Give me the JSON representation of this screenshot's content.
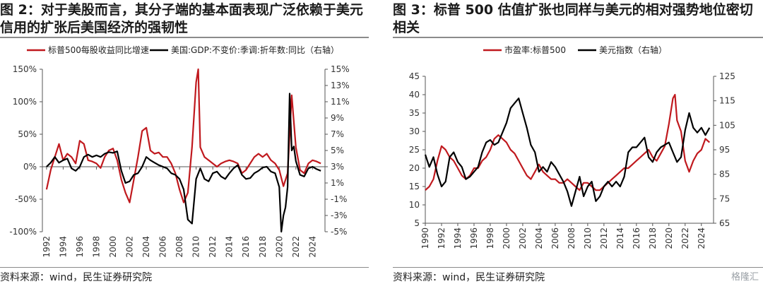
{
  "left": {
    "title": "图 2：对于美股而言，其分子端的基本面表现广泛依赖于美元信用的扩张后美国经济的强韧性",
    "source": "资料来源：wind，民生证券研究院"
  },
  "right": {
    "title": "图 3：标普 500 估值扩张也同样与美元的相对强势地位密切相关",
    "source": "资料来源：wind，民生证券研究院"
  },
  "watermark": "格隆汇",
  "colors": {
    "red": "#c0191e",
    "black": "#000000",
    "axis": "#555555"
  },
  "chart_data": [
    {
      "type": "line",
      "ylim": [
        -100,
        150
      ],
      "ylim_right": [
        -5,
        15
      ],
      "yticks": [
        "150%",
        "100%",
        "50%",
        "0%",
        "-50%",
        "-100%"
      ],
      "yticks_right": [
        "15%",
        "13%",
        "11%",
        "9%",
        "7%",
        "5%",
        "3%",
        "1%",
        "-1%",
        "-3%",
        "-5%"
      ],
      "xticks": [
        "1992",
        "1994",
        "1996",
        "1998",
        "2000",
        "2002",
        "2004",
        "2006",
        "2008",
        "2010",
        "2012",
        "2014",
        "2016",
        "2018",
        "2020",
        "2022",
        "2024"
      ],
      "legend_position": "top",
      "grid": false,
      "series": [
        {
          "name": "标普500每股收益同比增速",
          "axis": "left",
          "color": "#c0191e",
          "x": [
            1992.0,
            1992.5,
            1993.0,
            1993.5,
            1994.0,
            1994.5,
            1995.0,
            1995.5,
            1996.0,
            1996.5,
            1997.0,
            1997.5,
            1998.0,
            1998.5,
            1999.0,
            1999.5,
            2000.0,
            2000.5,
            2001.0,
            2001.5,
            2002.0,
            2002.5,
            2003.0,
            2003.5,
            2004.0,
            2004.5,
            2005.0,
            2005.5,
            2006.0,
            2006.5,
            2007.0,
            2007.5,
            2008.0,
            2008.5,
            2009.0,
            2009.5,
            2010.0,
            2010.25,
            2010.5,
            2011.0,
            2011.5,
            2012.0,
            2012.5,
            2013.0,
            2013.5,
            2014.0,
            2014.5,
            2015.0,
            2015.5,
            2016.0,
            2016.5,
            2017.0,
            2017.5,
            2018.0,
            2018.5,
            2019.0,
            2019.5,
            2020.0,
            2020.5,
            2021.0,
            2021.5,
            2022.0,
            2022.5,
            2023.0,
            2023.5,
            2024.0,
            2024.5,
            2025.0
          ],
          "values": [
            -35,
            -5,
            15,
            35,
            10,
            20,
            15,
            5,
            40,
            35,
            10,
            8,
            5,
            -2,
            15,
            25,
            28,
            10,
            -20,
            -40,
            -55,
            -20,
            15,
            55,
            60,
            25,
            20,
            22,
            15,
            15,
            5,
            -10,
            -35,
            -55,
            -40,
            30,
            130,
            150,
            30,
            15,
            10,
            5,
            0,
            5,
            8,
            10,
            8,
            5,
            -10,
            -5,
            5,
            15,
            20,
            15,
            20,
            10,
            5,
            -5,
            -30,
            -10,
            110,
            30,
            -5,
            -10,
            5,
            10,
            8,
            5
          ]
        },
        {
          "name": "美国:GDP:不变价:季调:折年数:同比（右轴）",
          "axis": "right",
          "color": "#000000",
          "x": [
            1992.0,
            1992.5,
            1993.0,
            1993.5,
            1994.0,
            1994.5,
            1995.0,
            1995.5,
            1996.0,
            1996.5,
            1997.0,
            1997.5,
            1998.0,
            1998.5,
            1999.0,
            1999.5,
            2000.0,
            2000.5,
            2001.0,
            2001.5,
            2002.0,
            2002.5,
            2003.0,
            2003.5,
            2004.0,
            2004.5,
            2005.0,
            2005.5,
            2006.0,
            2006.5,
            2007.0,
            2007.5,
            2008.0,
            2008.5,
            2009.0,
            2009.5,
            2010.0,
            2010.5,
            2011.0,
            2011.5,
            2012.0,
            2012.5,
            2013.0,
            2013.5,
            2014.0,
            2014.5,
            2015.0,
            2015.5,
            2016.0,
            2016.5,
            2017.0,
            2017.5,
            2018.0,
            2018.5,
            2019.0,
            2019.5,
            2020.0,
            2020.25,
            2020.5,
            2020.75,
            2021.0,
            2021.25,
            2021.5,
            2021.75,
            2022.0,
            2022.5,
            2023.0,
            2023.5,
            2024.0,
            2024.5,
            2025.0
          ],
          "values": [
            3.0,
            3.5,
            4.2,
            3.5,
            3.8,
            4.0,
            2.8,
            2.5,
            3.0,
            4.2,
            4.5,
            4.2,
            4.4,
            4.2,
            4.6,
            4.8,
            4.7,
            4.9,
            2.5,
            1.0,
            1.2,
            2.0,
            2.2,
            3.0,
            4.2,
            3.8,
            3.5,
            3.2,
            3.0,
            2.8,
            2.2,
            2.0,
            1.5,
            0.2,
            -3.5,
            -4.0,
            1.5,
            2.8,
            1.5,
            1.2,
            2.2,
            2.4,
            1.8,
            1.5,
            2.2,
            2.8,
            3.2,
            2.0,
            1.5,
            1.6,
            2.2,
            2.5,
            2.9,
            3.0,
            2.4,
            2.2,
            0.5,
            -5.0,
            -3.0,
            -2.0,
            0.5,
            12.0,
            5.0,
            5.5,
            3.7,
            2.0,
            1.8,
            2.8,
            3.0,
            2.7,
            2.5
          ]
        }
      ]
    },
    {
      "type": "line",
      "ylim": [
        5,
        45
      ],
      "ylim_right": [
        65,
        125
      ],
      "yticks": [
        "45",
        "40",
        "35",
        "30",
        "25",
        "20",
        "15",
        "10",
        "5"
      ],
      "yticks_right": [
        "125",
        "115",
        "105",
        "95",
        "85",
        "75",
        "65"
      ],
      "xticks": [
        "1990",
        "1992",
        "1994",
        "1996",
        "1998",
        "2000",
        "2002",
        "2004",
        "2006",
        "2008",
        "2010",
        "2012",
        "2014",
        "2016",
        "2018",
        "2020",
        "2022",
        "2024"
      ],
      "legend_position": "top",
      "grid": false,
      "series": [
        {
          "name": "市盈率:标普500",
          "axis": "left",
          "color": "#c0191e",
          "x": [
            1990.0,
            1990.5,
            1991.0,
            1991.5,
            1992.0,
            1992.5,
            1993.0,
            1993.5,
            1994.0,
            1994.5,
            1995.0,
            1995.5,
            1996.0,
            1996.5,
            1997.0,
            1997.5,
            1998.0,
            1998.5,
            1999.0,
            1999.5,
            2000.0,
            2000.5,
            2001.0,
            2001.5,
            2002.0,
            2002.5,
            2003.0,
            2003.5,
            2004.0,
            2004.5,
            2005.0,
            2005.5,
            2006.0,
            2006.5,
            2007.0,
            2007.5,
            2008.0,
            2008.5,
            2009.0,
            2009.5,
            2010.0,
            2010.5,
            2011.0,
            2011.5,
            2012.0,
            2012.5,
            2013.0,
            2013.5,
            2014.0,
            2014.5,
            2015.0,
            2015.5,
            2016.0,
            2016.5,
            2017.0,
            2017.5,
            2018.0,
            2018.5,
            2019.0,
            2019.5,
            2020.0,
            2020.5,
            2020.75,
            2021.0,
            2021.5,
            2022.0,
            2022.5,
            2023.0,
            2023.5,
            2024.0,
            2024.5,
            2025.0
          ],
          "values": [
            14,
            15,
            17,
            22,
            26,
            25,
            23,
            22,
            20,
            18,
            17,
            18,
            20,
            20,
            22,
            23,
            25,
            28,
            29,
            28,
            27,
            25,
            24,
            22,
            20,
            18,
            17,
            19,
            21,
            19,
            18,
            17,
            17,
            16,
            16,
            17,
            16,
            15,
            14,
            16,
            16,
            15,
            14,
            14,
            15,
            16,
            17,
            18,
            19,
            20,
            20,
            21,
            22,
            23,
            24,
            25,
            23,
            22,
            24,
            26,
            32,
            39,
            40,
            33,
            30,
            22,
            19,
            22,
            24,
            25,
            28,
            27
          ]
        },
        {
          "name": "美元指数（右轴）",
          "axis": "right",
          "color": "#000000",
          "x": [
            1990.0,
            1990.5,
            1991.0,
            1991.5,
            1992.0,
            1992.5,
            1993.0,
            1993.5,
            1994.0,
            1994.5,
            1995.0,
            1995.5,
            1996.0,
            1996.5,
            1997.0,
            1997.5,
            1998.0,
            1998.5,
            1999.0,
            1999.5,
            2000.0,
            2000.5,
            2001.0,
            2001.5,
            2002.0,
            2002.5,
            2003.0,
            2003.5,
            2004.0,
            2004.5,
            2005.0,
            2005.5,
            2006.0,
            2006.5,
            2007.0,
            2007.5,
            2008.0,
            2008.5,
            2009.0,
            2009.5,
            2010.0,
            2010.5,
            2011.0,
            2011.5,
            2012.0,
            2012.5,
            2013.0,
            2013.5,
            2014.0,
            2014.5,
            2015.0,
            2015.5,
            2016.0,
            2016.5,
            2017.0,
            2017.5,
            2018.0,
            2018.5,
            2019.0,
            2019.5,
            2020.0,
            2020.5,
            2021.0,
            2021.5,
            2022.0,
            2022.5,
            2023.0,
            2023.5,
            2024.0,
            2024.5,
            2025.0
          ],
          "values": [
            93,
            88,
            92,
            85,
            80,
            82,
            92,
            94,
            90,
            88,
            83,
            84,
            86,
            88,
            94,
            98,
            99,
            97,
            98,
            102,
            106,
            112,
            114,
            116,
            110,
            104,
            97,
            94,
            86,
            88,
            86,
            90,
            88,
            85,
            82,
            78,
            72,
            78,
            84,
            76,
            80,
            82,
            74,
            76,
            80,
            82,
            80,
            82,
            80,
            84,
            94,
            96,
            96,
            98,
            100,
            92,
            90,
            94,
            96,
            97,
            98,
            94,
            90,
            92,
            103,
            110,
            104,
            102,
            104,
            101,
            104
          ]
        }
      ]
    }
  ]
}
